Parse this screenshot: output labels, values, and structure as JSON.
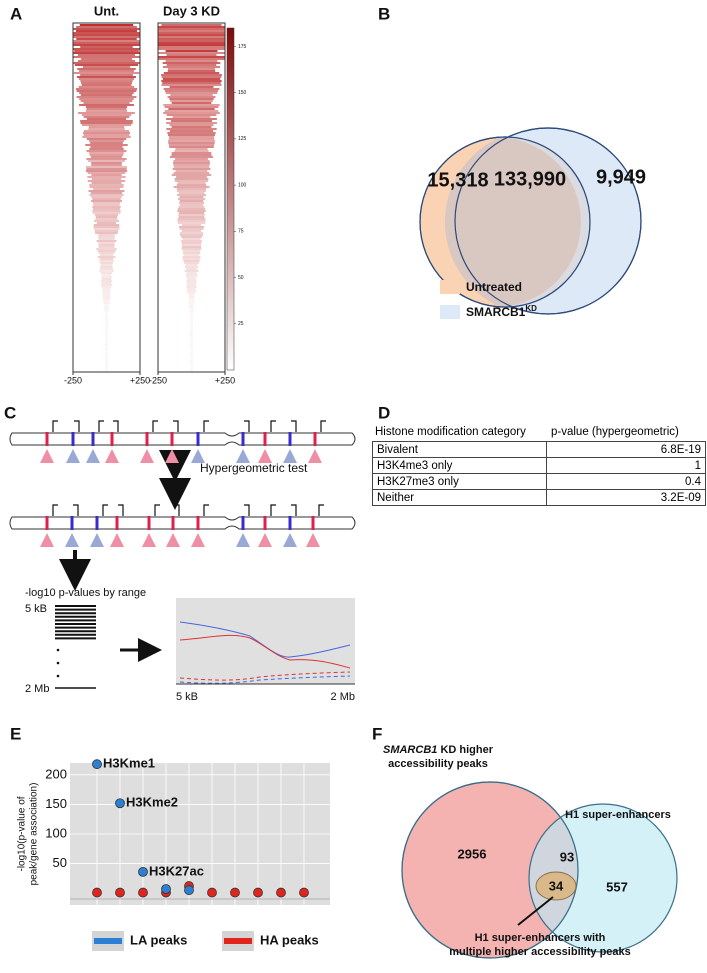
{
  "panel_letters": [
    "A",
    "B",
    "C",
    "D",
    "E",
    "F"
  ],
  "chart_data": [
    {
      "type": "heatmap",
      "columns": [
        "Unt.",
        "Day 3 KD"
      ],
      "xlim": [
        -250,
        250
      ],
      "xticks": [
        -250,
        {
          "value": 250,
          "label": "+250"
        }
      ],
      "colorbar_lim": [
        0,
        185
      ],
      "colorbar_ticks": [
        25,
        50,
        75,
        100,
        125,
        150,
        175
      ],
      "colormap": [
        "#ffffff",
        "#7f0a0a"
      ]
    },
    {
      "type": "scatter",
      "ylabel_lines": [
        "-log10(p-value of",
        "peak/gene association)"
      ],
      "categories": [
        null,
        null,
        null,
        null,
        null,
        null,
        null,
        null,
        null,
        null
      ],
      "series": [
        {
          "name": "LA peaks",
          "color": "#2d7fd3",
          "values": [
            218,
            152,
            36,
            7,
            5,
            null,
            null,
            null,
            null,
            null
          ],
          "labels": [
            "H3Kme1",
            "H3Kme2",
            "H3K27ac",
            null,
            null,
            null,
            null,
            null,
            null,
            null
          ]
        },
        {
          "name": "HA peaks",
          "color": "#e0261c",
          "values": [
            1,
            1,
            1,
            1,
            12,
            1,
            1,
            1,
            1,
            1
          ]
        }
      ],
      "ylim": [
        -20,
        220
      ],
      "yticks": [
        50,
        100,
        150,
        200
      ],
      "grid": true
    }
  ],
  "venn_b": {
    "counts": [
      "15,318",
      "133,990",
      "9,949"
    ],
    "legend": [
      {
        "text": "Untreated",
        "color": "#f9d3b4"
      },
      {
        "text": "SMARCB1",
        "sup": "KD",
        "color": "#dde9f7"
      }
    ]
  },
  "diagram_c": {
    "test_label": "Hypergeometric test",
    "range_title": "-log10 p-values by range",
    "range_top": "5 kB",
    "range_bottom": "2 Mb",
    "plot_x_start": "5 kB",
    "plot_x_end": "2 Mb"
  },
  "table_d": {
    "header": [
      "Histone modification category",
      "p-value (hypergeometric)"
    ],
    "rows": [
      [
        "Bivalent",
        "6.8E-19"
      ],
      [
        "H3K4me3 only",
        "1"
      ],
      [
        "H3K27me3 only",
        "0.4"
      ],
      [
        "Neither",
        "3.2E-09"
      ]
    ]
  },
  "venn_f": {
    "set_a_italic": "SMARCB1",
    "set_a_rest": " KD higher",
    "set_a_line2": "accessibility peaks",
    "set_b": "H1 super-enhancers",
    "counts": [
      "2956",
      "93",
      "557",
      "34"
    ],
    "subset_lines": [
      "H1 super-enhancers with",
      "multiple higher accessibility peaks"
    ]
  }
}
